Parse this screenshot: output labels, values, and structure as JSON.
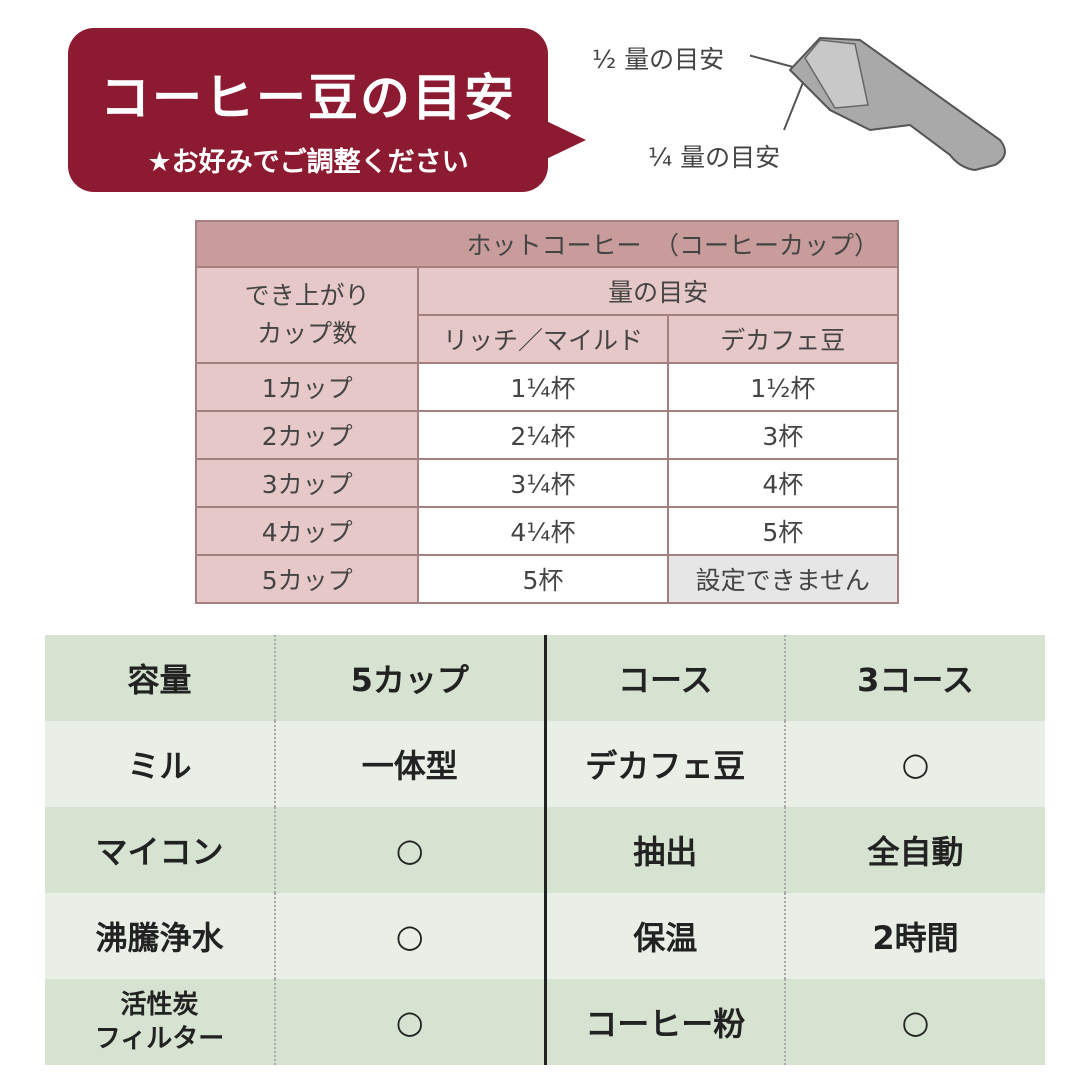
{
  "bubble": {
    "title": "コーヒー豆の目安",
    "subtitle": "★お好みでご調整ください",
    "color": "#8c1a31"
  },
  "scoop": {
    "half_label": "½ 量の目安",
    "quarter_label": "¼ 量の目安"
  },
  "bean_table": {
    "title": "ホットコーヒー　（コーヒーカップ）",
    "col_cups": "でき上がり\nカップ数",
    "col_amount": "量の目安",
    "col_rich": "リッチ／マイルド",
    "col_decaf": "デカフェ豆",
    "rows": [
      {
        "cups": "1カップ",
        "rich": "1¼杯",
        "decaf": "1½杯"
      },
      {
        "cups": "2カップ",
        "rich": "2¼杯",
        "decaf": "3杯"
      },
      {
        "cups": "3カップ",
        "rich": "3¼杯",
        "decaf": "4杯"
      },
      {
        "cups": "4カップ",
        "rich": "4¼杯",
        "decaf": "5杯"
      },
      {
        "cups": "5カップ",
        "rich": "5杯",
        "decaf": "設定できません"
      }
    ]
  },
  "spec_table": {
    "rows": [
      {
        "k1": "容量",
        "v1": "5カップ",
        "k2": "コース",
        "v2": "3コース"
      },
      {
        "k1": "ミル",
        "v1": "一体型",
        "k2": "デカフェ豆",
        "v2": "○"
      },
      {
        "k1": "マイコン",
        "v1": "○",
        "k2": "抽出",
        "v2": "全自動"
      },
      {
        "k1": "沸騰浄水",
        "v1": "○",
        "k2": "保温",
        "v2": "2時間"
      },
      {
        "k1": "活性炭\nフィルター",
        "v1": "○",
        "k2": "コーヒー粉",
        "v2": "○"
      }
    ]
  }
}
